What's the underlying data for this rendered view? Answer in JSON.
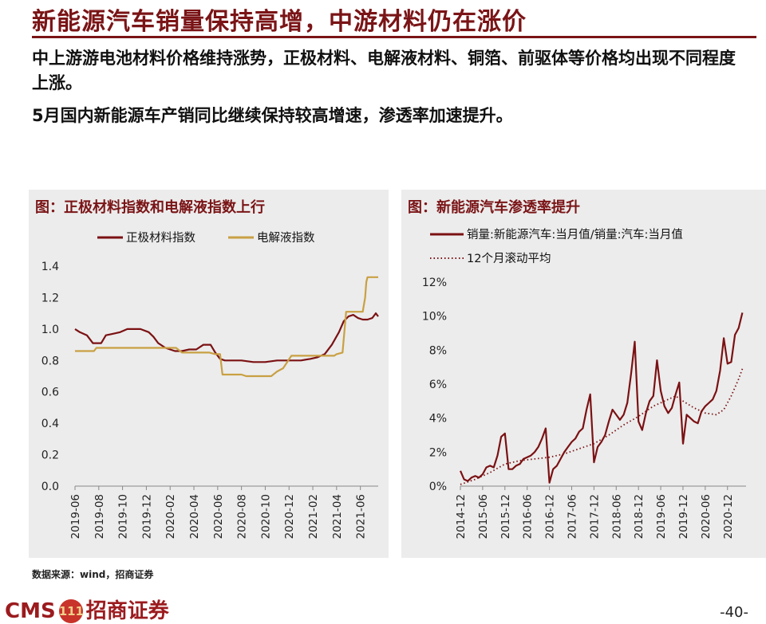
{
  "slide": {
    "title": "新能源汽车销量保持高增，中游材料仍在涨价",
    "bullet1": "中上游游电池材料价格维持涨势，正极材料、电解液材料、铜箔、前驱体等价格均出现不同程度上涨。",
    "bullet2": "5月国内新能源车产销同比继续保持较高增速，渗透率加速提升。",
    "source": "数据来源：wind，招商证券",
    "brand_latin": "CMS",
    "brand_logo": "111",
    "brand_cn": "招商证券",
    "page_number": "-40-"
  },
  "colors": {
    "accent": "#7a1416",
    "series_dark": "#7b1113",
    "series_gold": "#c9a043",
    "panel_bg": "#ececec"
  },
  "chart_data": [
    {
      "type": "line",
      "title": "图：正极材料指数和电解液指数上行",
      "x_ticks": [
        "2019-06",
        "2019-08",
        "2019-10",
        "2019-12",
        "2020-02",
        "2020-04",
        "2020-06",
        "2020-08",
        "2020-10",
        "2020-12",
        "2021-02",
        "2021-04",
        "2021-06"
      ],
      "y_ticks": [
        "0.0",
        "0.2",
        "0.4",
        "0.6",
        "0.8",
        "1.0",
        "1.2",
        "1.4"
      ],
      "ylim": [
        0,
        1.4
      ],
      "xlim_months": [
        0,
        25.5
      ],
      "legend_position": "top",
      "series": [
        {
          "name": "正极材料指数",
          "color": "#7b1113",
          "points": [
            [
              0,
              1.0
            ],
            [
              0.4,
              0.98
            ],
            [
              1,
              0.96
            ],
            [
              1.5,
              0.91
            ],
            [
              2.2,
              0.91
            ],
            [
              2.6,
              0.96
            ],
            [
              3.2,
              0.97
            ],
            [
              3.8,
              0.98
            ],
            [
              4.4,
              1.0
            ],
            [
              5.5,
              1.0
            ],
            [
              6.2,
              0.98
            ],
            [
              6.6,
              0.95
            ],
            [
              7,
              0.91
            ],
            [
              7.6,
              0.88
            ],
            [
              8.4,
              0.86
            ],
            [
              9,
              0.86
            ],
            [
              9.6,
              0.87
            ],
            [
              10.2,
              0.87
            ],
            [
              10.8,
              0.9
            ],
            [
              11.4,
              0.9
            ],
            [
              11.8,
              0.85
            ],
            [
              12.2,
              0.81
            ],
            [
              12.6,
              0.8
            ],
            [
              13.2,
              0.8
            ],
            [
              14,
              0.8
            ],
            [
              15,
              0.79
            ],
            [
              16,
              0.79
            ],
            [
              17,
              0.8
            ],
            [
              18,
              0.8
            ],
            [
              19,
              0.8
            ],
            [
              19.8,
              0.81
            ],
            [
              20.4,
              0.82
            ],
            [
              21,
              0.84
            ],
            [
              21.6,
              0.9
            ],
            [
              22.2,
              0.98
            ],
            [
              22.6,
              1.05
            ],
            [
              23,
              1.08
            ],
            [
              23.4,
              1.09
            ],
            [
              23.8,
              1.07
            ],
            [
              24.2,
              1.06
            ],
            [
              24.6,
              1.06
            ],
            [
              25,
              1.07
            ],
            [
              25.3,
              1.1
            ],
            [
              25.5,
              1.08
            ]
          ]
        },
        {
          "name": "电解液指数",
          "color": "#c9a043",
          "points": [
            [
              0,
              0.86
            ],
            [
              1.6,
              0.86
            ],
            [
              1.8,
              0.88
            ],
            [
              3,
              0.88
            ],
            [
              8.5,
              0.88
            ],
            [
              9,
              0.85
            ],
            [
              10.5,
              0.85
            ],
            [
              11.3,
              0.85
            ],
            [
              11.8,
              0.84
            ],
            [
              12.2,
              0.84
            ],
            [
              12.4,
              0.71
            ],
            [
              14,
              0.71
            ],
            [
              14.4,
              0.7
            ],
            [
              16.5,
              0.7
            ],
            [
              17,
              0.73
            ],
            [
              17.5,
              0.75
            ],
            [
              18.2,
              0.83
            ],
            [
              20,
              0.83
            ],
            [
              21,
              0.83
            ],
            [
              21.8,
              0.83
            ],
            [
              22,
              0.84
            ],
            [
              22.5,
              0.85
            ],
            [
              22.8,
              1.11
            ],
            [
              24.2,
              1.11
            ],
            [
              24.4,
              1.2
            ],
            [
              24.5,
              1.3
            ],
            [
              24.6,
              1.33
            ],
            [
              25.5,
              1.33
            ]
          ]
        }
      ]
    },
    {
      "type": "line",
      "title": "图：新能源汽车渗透率提升",
      "x_ticks": [
        "2014-12",
        "2015-06",
        "2015-12",
        "2016-06",
        "2016-12",
        "2017-06",
        "2017-12",
        "2018-06",
        "2018-12",
        "2019-06",
        "2019-12",
        "2020-06",
        "2020-12"
      ],
      "y_ticks": [
        "0%",
        "2%",
        "4%",
        "6%",
        "8%",
        "10%",
        "12%"
      ],
      "ylim": [
        0,
        12
      ],
      "xlim_months": [
        0,
        77
      ],
      "legend_position": "top",
      "series": [
        {
          "name": "销量:新能源汽车:当月值/销量:汽车:当月值",
          "color": "#7b1113",
          "style": "solid",
          "points": [
            [
              0,
              0.9
            ],
            [
              1,
              0.4
            ],
            [
              2,
              0.3
            ],
            [
              3,
              0.5
            ],
            [
              4,
              0.6
            ],
            [
              5,
              0.5
            ],
            [
              6,
              0.7
            ],
            [
              7,
              1.1
            ],
            [
              8,
              1.2
            ],
            [
              9,
              1.1
            ],
            [
              10,
              1.8
            ],
            [
              11,
              2.9
            ],
            [
              12,
              3.1
            ],
            [
              13,
              1.0
            ],
            [
              14,
              1.0
            ],
            [
              15,
              1.2
            ],
            [
              16,
              1.3
            ],
            [
              17,
              1.6
            ],
            [
              18,
              1.7
            ],
            [
              19,
              1.8
            ],
            [
              20,
              2.0
            ],
            [
              21,
              2.3
            ],
            [
              22,
              2.8
            ],
            [
              23,
              3.4
            ],
            [
              24,
              0.2
            ],
            [
              25,
              1.0
            ],
            [
              26,
              1.2
            ],
            [
              27,
              1.6
            ],
            [
              28,
              2.0
            ],
            [
              29,
              2.3
            ],
            [
              30,
              2.6
            ],
            [
              31,
              2.8
            ],
            [
              32,
              3.2
            ],
            [
              33,
              3.4
            ],
            [
              34,
              4.5
            ],
            [
              35,
              5.4
            ],
            [
              36,
              1.4
            ],
            [
              37,
              2.3
            ],
            [
              38,
              2.6
            ],
            [
              39,
              3.0
            ],
            [
              40,
              3.8
            ],
            [
              41,
              4.5
            ],
            [
              42,
              4.2
            ],
            [
              43,
              3.9
            ],
            [
              44,
              4.2
            ],
            [
              45,
              4.9
            ],
            [
              46,
              6.6
            ],
            [
              47,
              8.5
            ],
            [
              48,
              3.8
            ],
            [
              49,
              3.3
            ],
            [
              50,
              4.3
            ],
            [
              51,
              5.0
            ],
            [
              52,
              5.3
            ],
            [
              53,
              7.4
            ],
            [
              54,
              5.6
            ],
            [
              55,
              4.7
            ],
            [
              56,
              4.3
            ],
            [
              57,
              4.6
            ],
            [
              58,
              5.4
            ],
            [
              59,
              6.1
            ],
            [
              60,
              2.5
            ],
            [
              61,
              4.2
            ],
            [
              62,
              4.0
            ],
            [
              63,
              3.8
            ],
            [
              64,
              3.7
            ],
            [
              65,
              4.4
            ],
            [
              66,
              4.7
            ],
            [
              67,
              4.9
            ],
            [
              68,
              5.1
            ],
            [
              69,
              5.6
            ],
            [
              70,
              6.8
            ],
            [
              71,
              8.7
            ],
            [
              72,
              7.2
            ],
            [
              73,
              7.3
            ],
            [
              74,
              8.9
            ],
            [
              75,
              9.3
            ],
            [
              76,
              10.2
            ]
          ]
        },
        {
          "name": "12个月滚动平均",
          "color": "#7b1113",
          "style": "dotted",
          "points": [
            [
              0,
              0.1
            ],
            [
              4,
              0.4
            ],
            [
              8,
              0.8
            ],
            [
              12,
              1.3
            ],
            [
              16,
              1.5
            ],
            [
              20,
              1.6
            ],
            [
              24,
              1.7
            ],
            [
              28,
              1.9
            ],
            [
              32,
              2.2
            ],
            [
              36,
              2.5
            ],
            [
              40,
              3.0
            ],
            [
              44,
              3.6
            ],
            [
              48,
              4.1
            ],
            [
              52,
              4.7
            ],
            [
              56,
              5.1
            ],
            [
              58,
              5.3
            ],
            [
              60,
              5.0
            ],
            [
              63,
              4.6
            ],
            [
              66,
              4.3
            ],
            [
              69,
              4.2
            ],
            [
              71,
              4.5
            ],
            [
              73,
              5.3
            ],
            [
              75,
              6.3
            ],
            [
              76,
              6.9
            ]
          ]
        }
      ]
    }
  ]
}
